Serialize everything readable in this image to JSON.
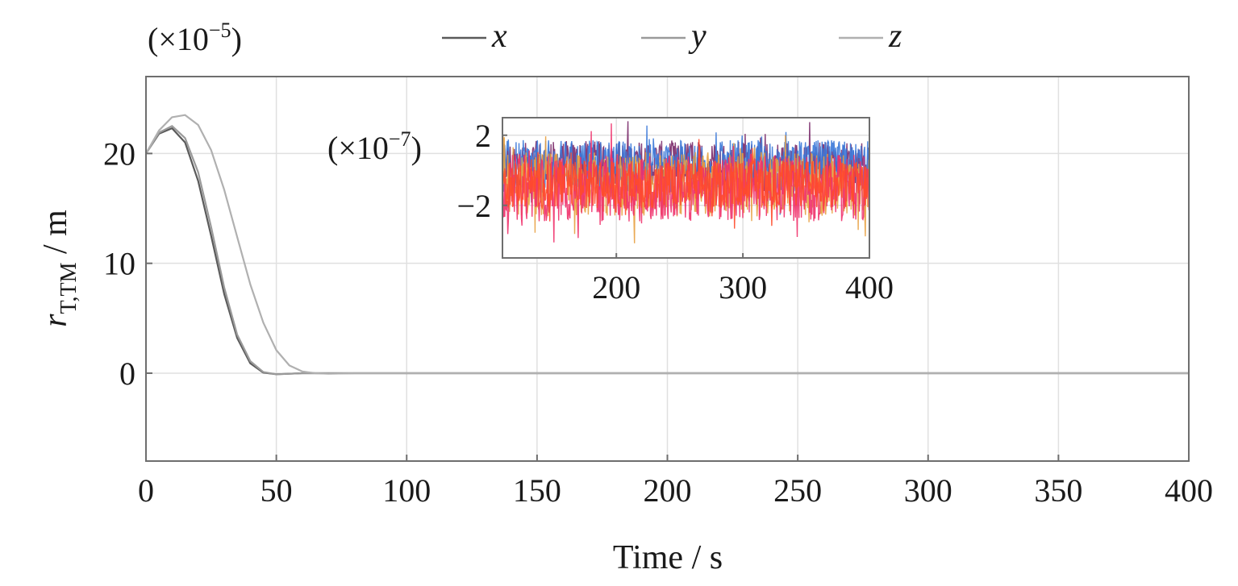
{
  "chart_data": [
    {
      "type": "line",
      "xlabel": "Time / s",
      "ylabel": {
        "symbol": "r",
        "subscript": "T,TM",
        "unit": " / m"
      },
      "multiplier": {
        "base": "(×10",
        "exp": "−5",
        "close": ")"
      },
      "xlim": [
        0,
        400
      ],
      "ylim": [
        -8,
        27
      ],
      "xticks": [
        0,
        50,
        100,
        150,
        200,
        250,
        300,
        350,
        400
      ],
      "xtick_labels": [
        "0",
        "50",
        "100",
        "150",
        "200",
        "250",
        "300",
        "350",
        "400"
      ],
      "yticks": [
        0,
        10,
        20
      ],
      "ytick_labels": [
        "0",
        "10",
        "20"
      ],
      "grid": true,
      "legend_position": "top",
      "series": [
        {
          "name": "x",
          "color": "#5a5a5a",
          "x": [
            0,
            5,
            10,
            15,
            20,
            25,
            30,
            35,
            40,
            45,
            50,
            55,
            60,
            80,
            100,
            400
          ],
          "y": [
            20.0,
            21.8,
            22.3,
            21.0,
            17.5,
            12.5,
            7.2,
            3.2,
            0.9,
            0.05,
            -0.1,
            -0.05,
            0.0,
            0.0,
            0.0,
            0.0
          ]
        },
        {
          "name": "y",
          "color": "#9a9a9a",
          "x": [
            0,
            5,
            10,
            15,
            20,
            25,
            30,
            35,
            40,
            45,
            50,
            55,
            60,
            80,
            100,
            400
          ],
          "y": [
            20.0,
            21.9,
            22.5,
            21.4,
            18.3,
            13.3,
            7.8,
            3.5,
            1.1,
            0.1,
            -0.1,
            -0.05,
            0.0,
            0.0,
            0.0,
            0.0
          ]
        },
        {
          "name": "z",
          "color": "#b0b0b0",
          "x": [
            0,
            5,
            10,
            15,
            20,
            25,
            30,
            35,
            40,
            45,
            50,
            55,
            60,
            65,
            70,
            80,
            100,
            400
          ],
          "y": [
            20.0,
            22.1,
            23.3,
            23.5,
            22.6,
            20.3,
            16.7,
            12.4,
            8.1,
            4.6,
            2.1,
            0.7,
            0.15,
            0.0,
            -0.05,
            0.0,
            0.0,
            0.0
          ]
        }
      ]
    },
    {
      "type": "line",
      "role": "inset",
      "multiplier": {
        "base": "(×10",
        "exp": "−7",
        "close": ")"
      },
      "xlim": [
        110,
        400
      ],
      "ylim": [
        -5,
        3
      ],
      "xticks": [
        200,
        300,
        400
      ],
      "xtick_labels": [
        "200",
        "300",
        "400"
      ],
      "yticks": [
        -2,
        2
      ],
      "ytick_labels": [
        "−2",
        "2"
      ],
      "grid": true,
      "series": [
        {
          "color": "#7a2a6a",
          "mean": 0.4,
          "spread": 1.6
        },
        {
          "color": "#3a78d8",
          "mean": 0.2,
          "spread": 1.9
        },
        {
          "color": "#e8a040",
          "mean": -0.8,
          "spread": 2.3
        },
        {
          "color": "#f0306a",
          "mean": -1.0,
          "spread": 2.4
        },
        {
          "color": "#ff4a2a",
          "mean": -0.8,
          "spread": 1.7
        }
      ]
    }
  ]
}
